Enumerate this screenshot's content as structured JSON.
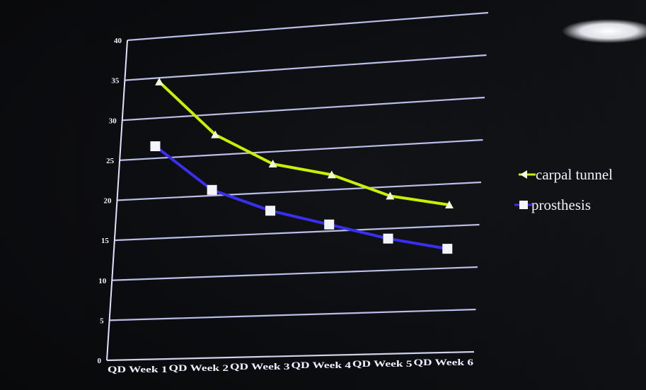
{
  "chart_data": {
    "type": "line",
    "categories": [
      "QD Week 1",
      "QD Week 2",
      "QD Week 3",
      "QD Week 4",
      "QD Week 5",
      "QD Week 6"
    ],
    "ylim": [
      0,
      40
    ],
    "yticks": [
      0,
      5,
      10,
      15,
      20,
      25,
      30,
      35,
      40
    ],
    "grid": true,
    "legend_position": "right",
    "series": [
      {
        "name": "carpal tunnel",
        "values": [
          34.5,
          27.5,
          23.5,
          21.8,
          18.9,
          17.5
        ],
        "color": "#c8f000",
        "marker": "triangle"
      },
      {
        "name": "prosthesis",
        "values": [
          26.5,
          20.7,
          17.8,
          15.8,
          13.8,
          12.3
        ],
        "color": "#3a2ef0",
        "marker": "square"
      }
    ]
  }
}
